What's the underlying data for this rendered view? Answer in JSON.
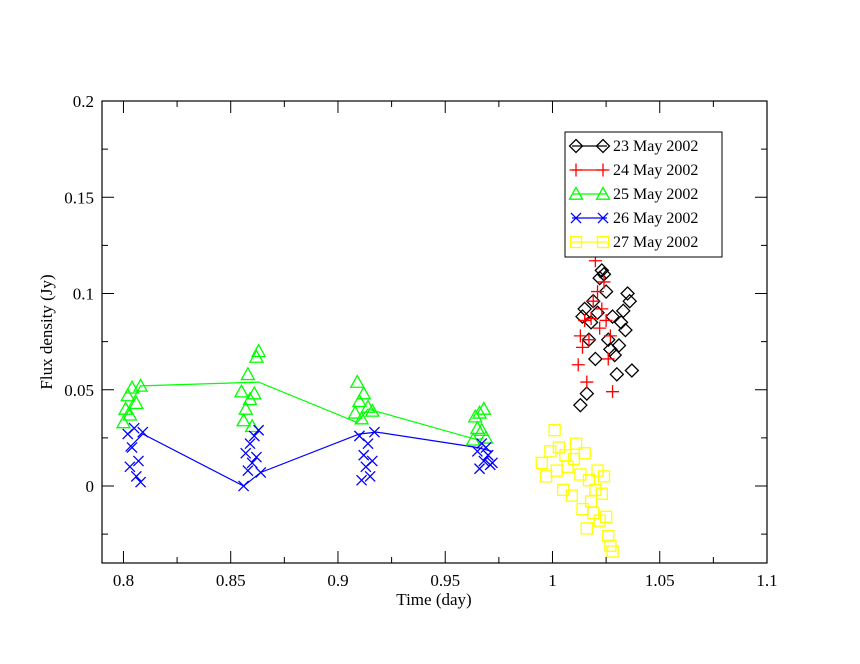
{
  "chart_data": {
    "type": "scatter",
    "title": "",
    "xlabel": "Time (day)",
    "ylabel": "Flux density (Jy)",
    "xlim": [
      0.79,
      1.1
    ],
    "ylim": [
      -0.04,
      0.2
    ],
    "x_ticks": [
      0.8,
      0.85,
      0.9,
      0.95,
      1.0,
      1.05,
      1.1
    ],
    "x_tick_labels": [
      "0.8",
      "0.85",
      "0.9",
      "0.95",
      "1",
      "1.05",
      "1.1"
    ],
    "y_ticks": [
      0,
      0.05,
      0.1,
      0.15,
      0.2
    ],
    "y_tick_labels": [
      "0",
      "0.05",
      "0.1",
      "0.15",
      "0.2"
    ],
    "grid": false,
    "legend_position": "top-right",
    "series": [
      {
        "name": "23 May 2002",
        "color": "#000000",
        "marker": "diamond",
        "x": [
          1.013,
          1.014,
          1.015,
          1.016,
          1.017,
          1.018,
          1.019,
          1.02,
          1.021,
          1.022,
          1.023,
          1.024,
          1.025,
          1.026,
          1.027,
          1.028,
          1.029,
          1.03,
          1.031,
          1.032,
          1.033,
          1.034,
          1.035,
          1.036,
          1.037
        ],
        "y": [
          0.042,
          0.088,
          0.092,
          0.048,
          0.076,
          0.085,
          0.096,
          0.066,
          0.09,
          0.108,
          0.112,
          0.11,
          0.101,
          0.076,
          0.071,
          0.088,
          0.068,
          0.058,
          0.073,
          0.085,
          0.091,
          0.081,
          0.1,
          0.096,
          0.06
        ]
      },
      {
        "name": "24 May 2002",
        "color": "#ff0000",
        "marker": "plus",
        "x": [
          1.012,
          1.013,
          1.014,
          1.015,
          1.016,
          1.017,
          1.018,
          1.019,
          1.02,
          1.021,
          1.022,
          1.023,
          1.024,
          1.025,
          1.026,
          1.027,
          1.028
        ],
        "y": [
          0.063,
          0.078,
          0.072,
          0.086,
          0.054,
          0.076,
          0.087,
          0.096,
          0.117,
          0.101,
          0.082,
          0.092,
          0.106,
          0.086,
          0.066,
          0.078,
          0.049
        ]
      },
      {
        "name": "25 May 2002",
        "color": "#00ff00",
        "marker": "triangle",
        "x": [
          0.8,
          0.801,
          0.802,
          0.803,
          0.804,
          0.806,
          0.808,
          0.855,
          0.856,
          0.857,
          0.858,
          0.859,
          0.86,
          0.861,
          0.862,
          0.863,
          0.908,
          0.909,
          0.91,
          0.911,
          0.912,
          0.914,
          0.916,
          0.963,
          0.964,
          0.965,
          0.966,
          0.967,
          0.968,
          0.969
        ],
        "y": [
          0.033,
          0.04,
          0.047,
          0.037,
          0.051,
          0.043,
          0.052,
          0.049,
          0.034,
          0.04,
          0.058,
          0.045,
          0.031,
          0.048,
          0.067,
          0.07,
          0.038,
          0.054,
          0.044,
          0.035,
          0.048,
          0.041,
          0.039,
          0.024,
          0.036,
          0.03,
          0.038,
          0.029,
          0.04,
          0.025
        ]
      },
      {
        "name": "26 May 2002",
        "color": "#0000ff",
        "marker": "x",
        "x": [
          0.802,
          0.803,
          0.804,
          0.805,
          0.806,
          0.807,
          0.808,
          0.809,
          0.856,
          0.857,
          0.858,
          0.859,
          0.86,
          0.861,
          0.862,
          0.863,
          0.864,
          0.91,
          0.911,
          0.912,
          0.913,
          0.914,
          0.915,
          0.916,
          0.917,
          0.965,
          0.966,
          0.967,
          0.968,
          0.969,
          0.97,
          0.971,
          0.972
        ],
        "y": [
          0.027,
          0.01,
          0.02,
          0.03,
          0.005,
          0.013,
          0.002,
          0.028,
          0.0,
          0.017,
          0.008,
          0.022,
          0.012,
          0.026,
          0.015,
          0.029,
          0.007,
          0.026,
          0.003,
          0.016,
          0.01,
          0.022,
          0.005,
          0.013,
          0.028,
          0.018,
          0.009,
          0.022,
          0.013,
          0.02,
          0.016,
          0.011,
          0.012
        ]
      },
      {
        "name": "27 May 2002",
        "color": "#ffff00",
        "marker": "square",
        "x": [
          0.995,
          0.997,
          0.999,
          1.001,
          1.002,
          1.003,
          1.005,
          1.006,
          1.007,
          1.009,
          1.01,
          1.011,
          1.013,
          1.014,
          1.015,
          1.016,
          1.017,
          1.018,
          1.019,
          1.02,
          1.021,
          1.022,
          1.023,
          1.024,
          1.025,
          1.026,
          1.027,
          1.028
        ],
        "y": [
          0.012,
          0.005,
          0.018,
          0.029,
          0.008,
          0.02,
          -0.002,
          0.016,
          0.01,
          -0.005,
          0.014,
          0.022,
          0.006,
          -0.012,
          0.017,
          -0.022,
          0.003,
          -0.008,
          -0.014,
          -0.002,
          0.008,
          -0.018,
          -0.004,
          0.005,
          -0.016,
          -0.026,
          -0.031,
          -0.034
        ]
      }
    ],
    "lines": [
      {
        "series": "25 May 2002",
        "color": "#00ff00",
        "x": [
          0.8,
          0.808,
          0.863,
          0.909,
          0.914,
          0.965,
          0.968
        ],
        "y": [
          0.036,
          0.052,
          0.054,
          0.033,
          0.04,
          0.024,
          0.025
        ]
      },
      {
        "series": "26 May 2002",
        "color": "#0000ff",
        "x": [
          0.801,
          0.809,
          0.856,
          0.864,
          0.91,
          0.918,
          0.965,
          0.972
        ],
        "y": [
          0.018,
          0.027,
          0.0,
          0.007,
          0.027,
          0.028,
          0.02,
          0.018
        ]
      },
      {
        "series": "23 May 2002",
        "color": "#000000",
        "x": [
          1.022,
          1.025
        ],
        "y": [
          0.108,
          0.112
        ]
      }
    ]
  }
}
